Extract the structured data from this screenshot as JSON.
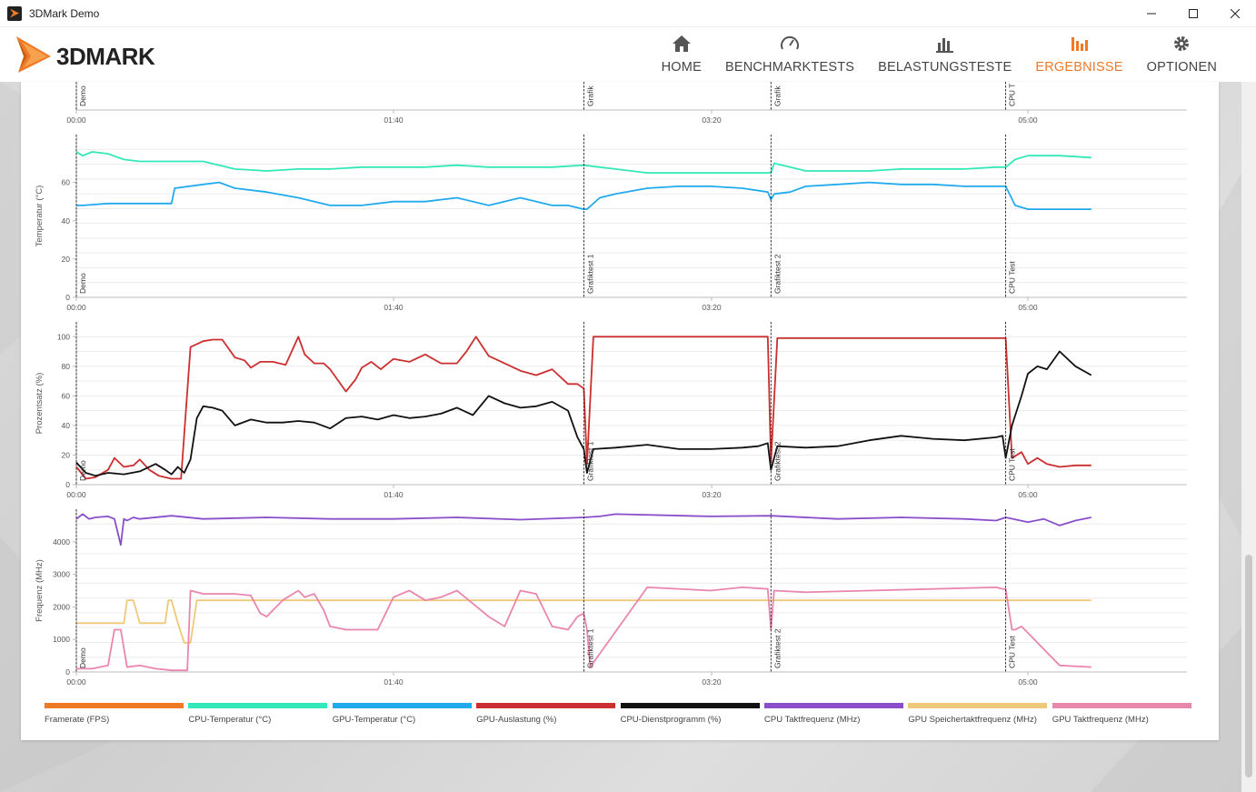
{
  "window": {
    "title": "3DMark Demo",
    "minimize": "—",
    "maximize": "☐",
    "close": "✕"
  },
  "logo": {
    "text": "3DMARK"
  },
  "nav": [
    {
      "label": "HOME",
      "icon": "home-icon",
      "active": false
    },
    {
      "label": "BENCHMARKTESTS",
      "icon": "speedometer-icon",
      "active": false
    },
    {
      "label": "BELASTUNGSTESTE",
      "icon": "bar-chart-icon",
      "active": false
    },
    {
      "label": "ERGEBNISSE",
      "icon": "results-chart-icon",
      "active": true
    },
    {
      "label": "OPTIONEN",
      "icon": "gear-icon",
      "active": false
    }
  ],
  "colors": {
    "accent": "#ee7a26",
    "framerate": "#ee7a26",
    "cpu_temp": "#33e8b8",
    "gpu_temp": "#22aaee",
    "gpu_load": "#cc2f2f",
    "cpu_util": "#111111",
    "cpu_clock": "#8a4ecb",
    "gpu_mem_clock": "#f0c87a",
    "gpu_clock": "#ea86ae"
  },
  "legend": [
    {
      "label": "Framerate (FPS)",
      "color": "#ee7a26"
    },
    {
      "label": "CPU-Temperatur (°C)",
      "color": "#33e8b8"
    },
    {
      "label": "GPU-Temperatur (°C)",
      "color": "#22aaee"
    },
    {
      "label": "GPU-Auslastung (%)",
      "color": "#cc2f2f"
    },
    {
      "label": "CPU-Dienstprogramm (%)",
      "color": "#111111"
    },
    {
      "label": "CPU Taktfrequenz (MHz)",
      "color": "#8a4ecb"
    },
    {
      "label": "GPU Speichertaktfrequenz (MHz)",
      "color": "#f0c87a"
    },
    {
      "label": "GPU Taktfrequenz (MHz)",
      "color": "#ea86ae"
    }
  ],
  "chart_data": [
    {
      "type": "line",
      "id": "framerate-partial",
      "x_ticks": [
        "00:00",
        "01:40",
        "03:20",
        "05:00"
      ],
      "xlim": [
        0,
        360
      ],
      "markers": [
        {
          "x": 0,
          "label": "Demo"
        },
        {
          "x": 160,
          "label": "Grafik"
        },
        {
          "x": 219,
          "label": "Grafik"
        },
        {
          "x": 293,
          "label": "CPU T"
        }
      ]
    },
    {
      "type": "line",
      "id": "temperature",
      "ylabel": "Temperatur (°C)",
      "ylim": [
        0,
        85
      ],
      "y_ticks": [
        0,
        20,
        40,
        60
      ],
      "x_ticks": [
        "00:00",
        "01:40",
        "03:20",
        "05:00"
      ],
      "xlim": [
        0,
        360
      ],
      "markers": [
        {
          "x": 0,
          "label": "Demo"
        },
        {
          "x": 160,
          "label": "Grafiktest 1"
        },
        {
          "x": 219,
          "label": "Grafiktest 2"
        },
        {
          "x": 293,
          "label": "CPU Test"
        }
      ],
      "series": [
        {
          "name": "CPU-Temperatur (°C)",
          "color": "#33e8b8",
          "x": [
            0,
            2,
            5,
            10,
            15,
            20,
            30,
            40,
            50,
            60,
            70,
            80,
            90,
            100,
            110,
            120,
            130,
            140,
            150,
            160,
            165,
            170,
            180,
            190,
            200,
            210,
            219,
            220,
            225,
            230,
            240,
            250,
            260,
            270,
            280,
            290,
            293,
            296,
            300,
            310,
            320
          ],
          "y": [
            76,
            74,
            76,
            75,
            72,
            71,
            71,
            71,
            67,
            66,
            67,
            67,
            68,
            68,
            68,
            69,
            68,
            68,
            68,
            69,
            68,
            67,
            65,
            65,
            65,
            65,
            65,
            70,
            68,
            66,
            66,
            66,
            67,
            67,
            67,
            68,
            68,
            72,
            74,
            74,
            73
          ]
        },
        {
          "name": "GPU-Temperatur (°C)",
          "color": "#22aaee",
          "x": [
            0,
            2,
            10,
            20,
            30,
            31,
            40,
            45,
            50,
            60,
            70,
            80,
            90,
            100,
            110,
            120,
            130,
            140,
            150,
            155,
            160,
            161,
            165,
            170,
            180,
            190,
            200,
            210,
            218,
            219,
            220,
            225,
            230,
            240,
            250,
            260,
            270,
            280,
            290,
            293,
            296,
            300,
            310,
            320
          ],
          "y": [
            48,
            48,
            49,
            49,
            49,
            57,
            59,
            60,
            57,
            55,
            52,
            48,
            48,
            50,
            50,
            52,
            48,
            52,
            48,
            48,
            46,
            46,
            52,
            54,
            57,
            58,
            58,
            57,
            55,
            51,
            54,
            55,
            58,
            59,
            60,
            59,
            59,
            58,
            58,
            58,
            48,
            46,
            46,
            46
          ]
        }
      ]
    },
    {
      "type": "line",
      "id": "percentage",
      "ylabel": "Prozentsatz (%)",
      "ylim": [
        0,
        110
      ],
      "y_ticks": [
        0,
        20,
        40,
        60,
        80,
        100
      ],
      "x_ticks": [
        "00:00",
        "01:40",
        "03:20",
        "05:00"
      ],
      "xlim": [
        0,
        360
      ],
      "markers": [
        {
          "x": 0,
          "label": "Demo"
        },
        {
          "x": 160,
          "label": "Grafiktest 1"
        },
        {
          "x": 219,
          "label": "Grafiktest 2"
        },
        {
          "x": 293,
          "label": "CPU Test"
        }
      ],
      "series": [
        {
          "name": "GPU-Auslastung (%)",
          "color": "#cc2f2f",
          "x": [
            0,
            3,
            6,
            10,
            12,
            15,
            18,
            20,
            23,
            26,
            30,
            33,
            36,
            40,
            43,
            46,
            50,
            53,
            55,
            58,
            62,
            66,
            70,
            72,
            75,
            78,
            80,
            85,
            88,
            90,
            93,
            96,
            100,
            105,
            110,
            115,
            120,
            123,
            126,
            130,
            135,
            140,
            145,
            150,
            155,
            158,
            160,
            161,
            163,
            170,
            200,
            215,
            218,
            219,
            221,
            225,
            240,
            260,
            280,
            292,
            293,
            295,
            298,
            300,
            303,
            306,
            310,
            315,
            320
          ],
          "y": [
            12,
            4,
            5,
            10,
            18,
            12,
            13,
            17,
            10,
            6,
            4,
            4,
            93,
            97,
            98,
            98,
            86,
            84,
            79,
            83,
            83,
            81,
            100,
            88,
            82,
            82,
            78,
            63,
            71,
            79,
            83,
            78,
            85,
            83,
            88,
            82,
            82,
            90,
            100,
            87,
            82,
            77,
            74,
            78,
            68,
            68,
            65,
            14,
            100,
            100,
            100,
            100,
            100,
            15,
            99,
            99,
            99,
            99,
            99,
            99,
            99,
            18,
            22,
            14,
            18,
            14,
            12,
            13,
            13
          ]
        },
        {
          "name": "CPU-Dienstprogramm (%)",
          "color": "#111111",
          "x": [
            0,
            3,
            6,
            10,
            15,
            20,
            25,
            28,
            30,
            32,
            34,
            36,
            38,
            40,
            43,
            46,
            50,
            55,
            60,
            65,
            70,
            75,
            80,
            85,
            90,
            95,
            100,
            105,
            110,
            115,
            120,
            125,
            130,
            135,
            140,
            145,
            150,
            155,
            158,
            160,
            161,
            163,
            170,
            180,
            190,
            200,
            210,
            215,
            218,
            219,
            221,
            230,
            240,
            250,
            260,
            270,
            280,
            290,
            292,
            293,
            295,
            298,
            300,
            303,
            306,
            310,
            315,
            320
          ],
          "y": [
            15,
            8,
            6,
            8,
            7,
            9,
            14,
            10,
            7,
            12,
            8,
            17,
            45,
            53,
            52,
            50,
            40,
            44,
            42,
            42,
            43,
            42,
            38,
            45,
            46,
            44,
            47,
            45,
            46,
            48,
            52,
            47,
            60,
            55,
            52,
            53,
            56,
            50,
            32,
            24,
            8,
            24,
            25,
            27,
            24,
            24,
            25,
            26,
            28,
            10,
            26,
            25,
            26,
            30,
            33,
            31,
            30,
            32,
            33,
            18,
            40,
            60,
            75,
            80,
            78,
            90,
            80,
            74
          ]
        }
      ]
    },
    {
      "type": "line",
      "id": "frequency",
      "ylabel": "Frequenz (MHz)",
      "ylim": [
        0,
        5000
      ],
      "y_ticks": [
        0,
        1000,
        2000,
        3000,
        4000
      ],
      "x_ticks": [
        "00:00",
        "01:40",
        "03:20",
        "05:00"
      ],
      "xlim": [
        0,
        360
      ],
      "markers": [
        {
          "x": 0,
          "label": "Demo"
        },
        {
          "x": 160,
          "label": "Grafiktest 1"
        },
        {
          "x": 219,
          "label": "Grafiktest 2"
        },
        {
          "x": 293,
          "label": "CPU Test"
        }
      ],
      "series": [
        {
          "name": "CPU Taktfrequenz (MHz)",
          "color": "#8a4ecb",
          "x": [
            0,
            2,
            4,
            6,
            10,
            12,
            14,
            15,
            16,
            18,
            20,
            30,
            40,
            60,
            80,
            100,
            120,
            140,
            160,
            165,
            170,
            200,
            219,
            240,
            260,
            280,
            290,
            293,
            300,
            305,
            310,
            315,
            320
          ],
          "y": [
            4700,
            4850,
            4700,
            4750,
            4780,
            4700,
            3900,
            4700,
            4650,
            4750,
            4700,
            4800,
            4700,
            4750,
            4700,
            4700,
            4750,
            4680,
            4750,
            4780,
            4850,
            4780,
            4800,
            4700,
            4750,
            4700,
            4650,
            4750,
            4600,
            4700,
            4500,
            4650,
            4750
          ]
        },
        {
          "name": "GPU Speichertaktfrequenz (MHz)",
          "color": "#f0c87a",
          "x": [
            0,
            15,
            16,
            18,
            20,
            28,
            29,
            30,
            32,
            34,
            36,
            38,
            320
          ],
          "y": [
            1500,
            1500,
            2200,
            2200,
            1500,
            1500,
            2200,
            2200,
            1500,
            900,
            900,
            2200,
            2200
          ]
        },
        {
          "name": "GPU Taktfrequenz (MHz)",
          "color": "#ea86ae",
          "x": [
            0,
            5,
            10,
            12,
            14,
            16,
            20,
            25,
            30,
            35,
            36,
            40,
            50,
            55,
            58,
            60,
            62,
            65,
            70,
            72,
            75,
            78,
            80,
            85,
            88,
            90,
            92,
            95,
            100,
            105,
            110,
            115,
            120,
            125,
            130,
            135,
            140,
            145,
            150,
            155,
            158,
            160,
            161,
            162,
            180,
            200,
            210,
            218,
            219,
            220,
            230,
            250,
            270,
            290,
            292,
            293,
            295,
            296,
            298,
            300,
            310,
            320
          ],
          "y": [
            100,
            100,
            200,
            1300,
            1300,
            150,
            200,
            100,
            50,
            50,
            2500,
            2400,
            2400,
            2350,
            1800,
            1700,
            1900,
            2200,
            2500,
            2300,
            2400,
            1900,
            1400,
            1300,
            1300,
            1300,
            1300,
            1300,
            2300,
            2500,
            2200,
            2300,
            2500,
            2100,
            1700,
            1400,
            2500,
            2400,
            1400,
            1300,
            1700,
            1800,
            1300,
            150,
            2600,
            2500,
            2600,
            2550,
            1300,
            2500,
            2450,
            2500,
            2550,
            2600,
            2550,
            2550,
            1300,
            1300,
            1400,
            1200,
            200,
            150
          ]
        }
      ]
    }
  ]
}
